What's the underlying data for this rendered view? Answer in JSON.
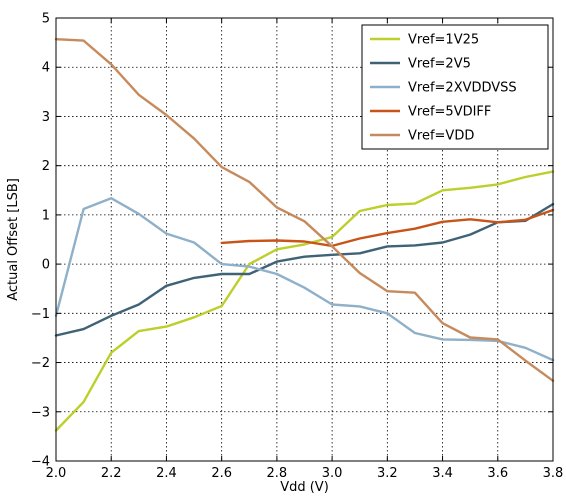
{
  "chart_data": {
    "type": "line",
    "title": "",
    "xlabel": "Vdd (V)",
    "ylabel": "Actual Offset [LSB]",
    "xlim": [
      2.0,
      3.8
    ],
    "ylim": [
      -4,
      5
    ],
    "xticks": [
      2.0,
      2.2,
      2.4,
      2.6,
      2.8,
      3.0,
      3.2,
      3.4,
      3.6,
      3.8
    ],
    "xtick_labels": [
      "2.0",
      "2.2",
      "2.4",
      "2.6",
      "2.8",
      "3.0",
      "3.2",
      "3.4",
      "3.6",
      "3.8"
    ],
    "yticks": [
      -4,
      -3,
      -2,
      -1,
      0,
      1,
      2,
      3,
      4,
      5
    ],
    "ytick_labels": [
      "−4",
      "−3",
      "−2",
      "−1",
      "0",
      "1",
      "2",
      "3",
      "4",
      "5"
    ],
    "grid": true,
    "legend_position": "top-right",
    "series": [
      {
        "name": "Vref=1V25",
        "color": "#bccf2a",
        "x": [
          2.0,
          2.1,
          2.2,
          2.3,
          2.4,
          2.5,
          2.6,
          2.7,
          2.8,
          2.9,
          3.0,
          3.1,
          3.2,
          3.3,
          3.4,
          3.5,
          3.6,
          3.7,
          3.8
        ],
        "y": [
          -3.38,
          -2.8,
          -1.8,
          -1.36,
          -1.27,
          -1.08,
          -0.85,
          0.0,
          0.3,
          0.4,
          0.55,
          1.08,
          1.2,
          1.23,
          1.5,
          1.55,
          1.62,
          1.77,
          1.88
        ]
      },
      {
        "name": "Vref=2V5",
        "color": "#3f6276",
        "x": [
          2.0,
          2.1,
          2.2,
          2.3,
          2.4,
          2.5,
          2.6,
          2.7,
          2.8,
          2.9,
          3.0,
          3.1,
          3.2,
          3.3,
          3.4,
          3.5,
          3.6,
          3.7,
          3.8
        ],
        "y": [
          -1.45,
          -1.32,
          -1.05,
          -0.82,
          -0.44,
          -0.28,
          -0.2,
          -0.2,
          0.05,
          0.15,
          0.19,
          0.22,
          0.36,
          0.38,
          0.44,
          0.6,
          0.85,
          0.88,
          1.22
        ]
      },
      {
        "name": "Vref=2XVDDVSS",
        "color": "#8fb0c9",
        "x": [
          2.0,
          2.1,
          2.2,
          2.3,
          2.4,
          2.5,
          2.6,
          2.7,
          2.8,
          2.9,
          3.0,
          3.1,
          3.2,
          3.3,
          3.4,
          3.5,
          3.6,
          3.7,
          3.8
        ],
        "y": [
          -1.05,
          1.12,
          1.34,
          1.02,
          0.62,
          0.44,
          0.0,
          -0.05,
          -0.2,
          -0.48,
          -0.82,
          -0.86,
          -1.0,
          -1.4,
          -1.53,
          -1.54,
          -1.56,
          -1.7,
          -1.95
        ]
      },
      {
        "name": "Vref=5VDIFF",
        "color": "#c9541a",
        "x": [
          2.6,
          2.7,
          2.8,
          2.9,
          3.0,
          3.1,
          3.2,
          3.3,
          3.4,
          3.5,
          3.6,
          3.7,
          3.8
        ],
        "y": [
          0.43,
          0.47,
          0.48,
          0.46,
          0.37,
          0.52,
          0.63,
          0.72,
          0.86,
          0.91,
          0.85,
          0.9,
          1.1
        ]
      },
      {
        "name": "Vref=VDD",
        "color": "#c68a5c",
        "x": [
          2.0,
          2.1,
          2.2,
          2.3,
          2.4,
          2.5,
          2.6,
          2.7,
          2.8,
          2.9,
          3.0,
          3.1,
          3.2,
          3.3,
          3.4,
          3.5,
          3.6,
          3.7,
          3.8
        ],
        "y": [
          4.57,
          4.54,
          4.06,
          3.44,
          3.03,
          2.55,
          1.97,
          1.67,
          1.15,
          0.87,
          0.36,
          -0.18,
          -0.55,
          -0.58,
          -1.2,
          -1.49,
          -1.53,
          -1.96,
          -2.37
        ]
      }
    ]
  }
}
